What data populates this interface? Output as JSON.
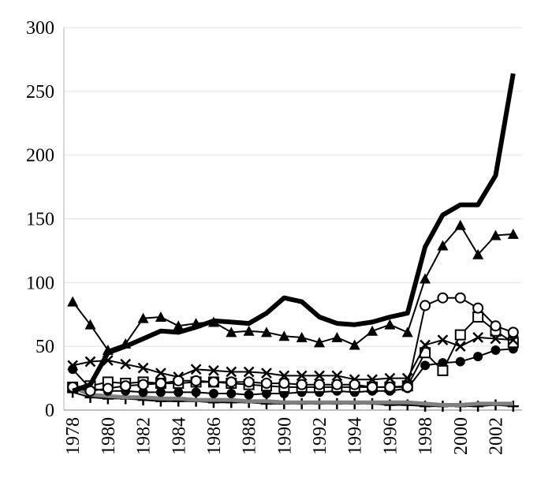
{
  "chart_data": {
    "type": "line",
    "title": "",
    "xlabel": "",
    "ylabel": "",
    "x": [
      1978,
      1979,
      1980,
      1981,
      1982,
      1983,
      1984,
      1985,
      1986,
      1987,
      1988,
      1989,
      1990,
      1991,
      1992,
      1993,
      1994,
      1995,
      1996,
      1997,
      1998,
      1999,
      2000,
      2001,
      2002,
      2003
    ],
    "xlim": [
      1978,
      2003
    ],
    "ylim": [
      0,
      300
    ],
    "y_ticks": [
      0,
      50,
      100,
      150,
      200,
      250,
      300
    ],
    "x_ticks": [
      1978,
      1980,
      1982,
      1984,
      1986,
      1988,
      1990,
      1992,
      1994,
      1996,
      1998,
      2000,
      2002
    ],
    "grid": "horizontal",
    "legend": "none",
    "series": [
      {
        "color": "#000000",
        "marker": "none",
        "line_width": 6,
        "values": [
          15,
          20,
          45,
          50,
          56,
          62,
          61,
          65,
          70,
          69,
          68,
          76,
          88,
          85,
          73,
          68,
          67,
          69,
          73,
          76,
          128,
          153,
          161,
          161,
          184,
          264
        ]
      },
      {
        "color": "#000000",
        "marker": "triangle",
        "line_width": 2,
        "values": [
          85,
          67,
          47,
          52,
          72,
          73,
          66,
          68,
          69,
          61,
          62,
          61,
          58,
          57,
          53,
          57,
          51,
          62,
          67,
          61,
          103,
          129,
          145,
          122,
          137,
          138
        ]
      },
      {
        "color": "#000000",
        "marker": "open-circle",
        "line_width": 2,
        "values": [
          18,
          15,
          17,
          19,
          20,
          21,
          23,
          23,
          22,
          22,
          22,
          21,
          21,
          20,
          20,
          20,
          20,
          18,
          18,
          18,
          82,
          88,
          88,
          80,
          66,
          61
        ]
      },
      {
        "color": "#000000",
        "marker": "cross",
        "line_width": 2,
        "values": [
          35,
          38,
          39,
          36,
          33,
          29,
          26,
          32,
          31,
          30,
          30,
          29,
          27,
          27,
          27,
          27,
          24,
          24,
          25,
          25,
          51,
          55,
          50,
          57,
          56,
          55
        ]
      },
      {
        "color": "#000000",
        "marker": "open-square",
        "line_width": 2,
        "values": [
          18,
          19,
          22,
          21,
          22,
          21,
          21,
          22,
          22,
          21,
          20,
          19,
          18,
          18,
          18,
          18,
          18,
          18,
          18,
          19,
          45,
          31,
          59,
          73,
          62,
          53
        ]
      },
      {
        "color": "#000000",
        "marker": "filled-circle",
        "line_width": 2,
        "values": [
          32,
          17,
          15,
          15,
          14,
          14,
          14,
          14,
          13,
          13,
          12,
          13,
          13,
          14,
          14,
          15,
          14,
          15,
          15,
          17,
          35,
          37,
          38,
          42,
          47,
          48
        ]
      },
      {
        "color": "#808080",
        "marker": "none",
        "line_width": 5,
        "values": [
          18,
          12,
          11,
          10,
          10,
          9,
          9,
          8,
          8,
          8,
          7,
          7,
          6,
          6,
          6,
          6,
          6,
          6,
          6,
          6,
          5,
          4,
          4,
          5,
          5,
          5
        ]
      },
      {
        "color": "#000000",
        "marker": "plus",
        "line_width": 2,
        "values": [
          14,
          10,
          9,
          9,
          8,
          7,
          7,
          7,
          6,
          6,
          6,
          5,
          5,
          5,
          5,
          5,
          5,
          5,
          4,
          4,
          3,
          3,
          3,
          3,
          4,
          3
        ]
      }
    ]
  }
}
